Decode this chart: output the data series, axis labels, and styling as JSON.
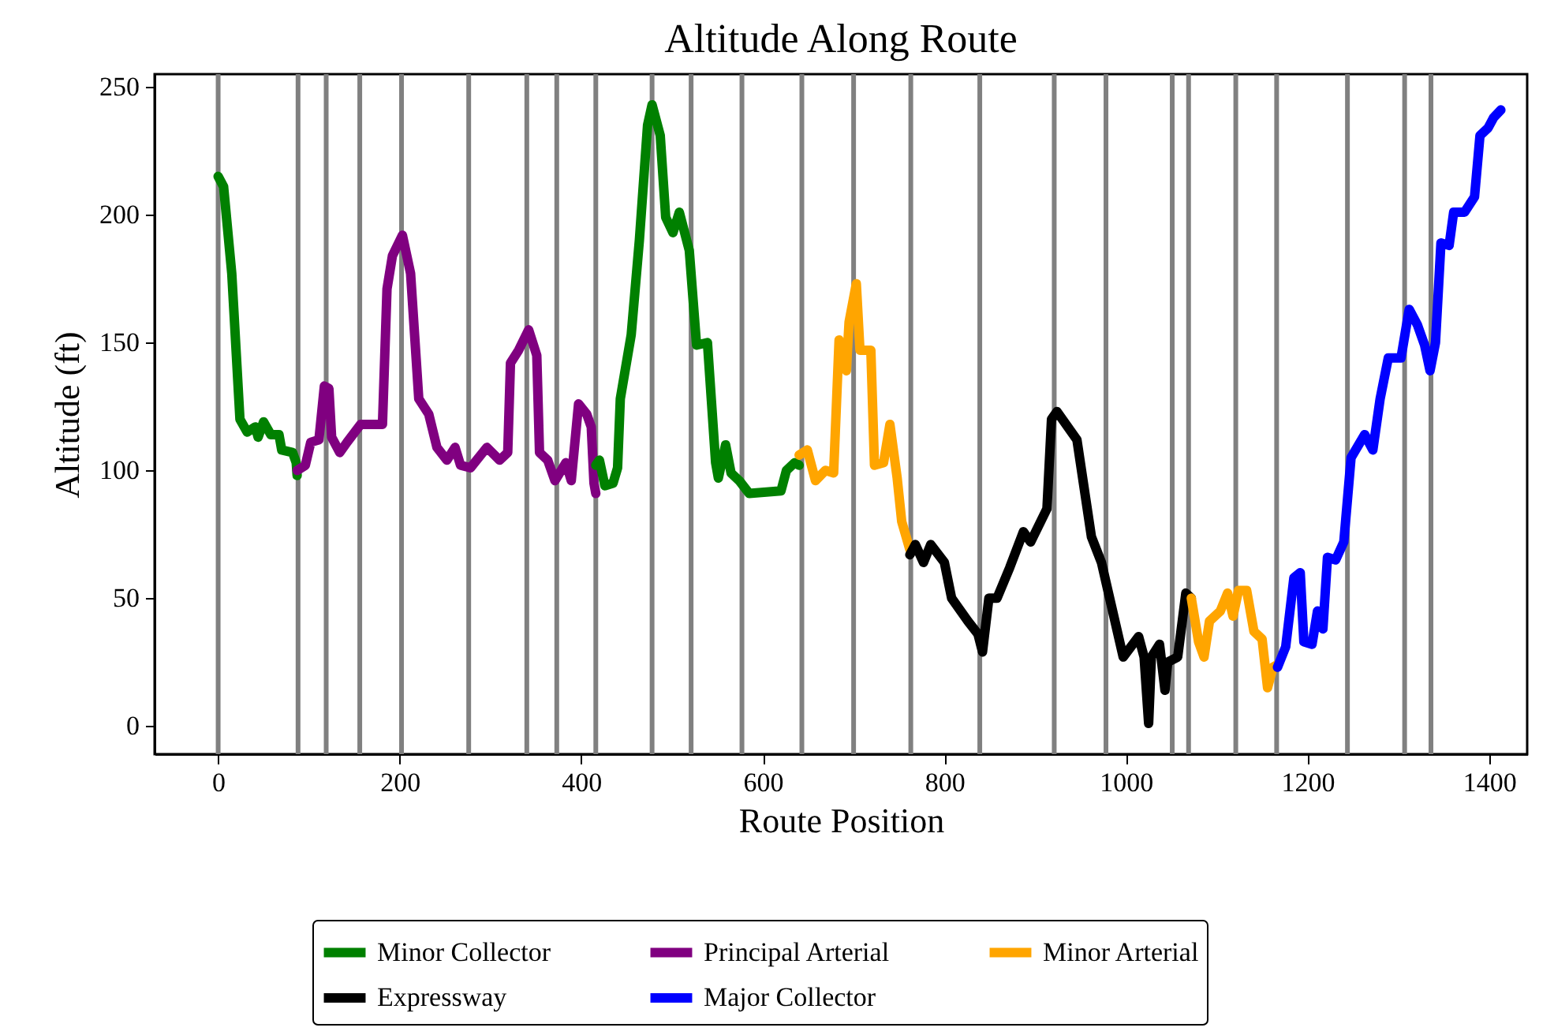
{
  "chart_data": {
    "type": "line",
    "title": "Altitude Along Route",
    "xlabel": "Route Position",
    "ylabel": "Altitude (ft)",
    "xlim": [
      -70,
      1442
    ],
    "ylim": [
      -11,
      255
    ],
    "xticks": [
      0,
      200,
      400,
      600,
      800,
      1000,
      1200,
      1400
    ],
    "yticks": [
      0,
      50,
      100,
      150,
      200,
      250
    ],
    "legend": "bottom",
    "line_style": "solid",
    "series": [
      {
        "name": "Minor Collector",
        "color": "#008000",
        "x": [
          0,
          6,
          15,
          24,
          32,
          41,
          44,
          50,
          58,
          67,
          70,
          82,
          86,
          87
        ],
        "values": [
          215,
          211,
          177,
          120,
          115,
          117,
          113,
          119,
          114,
          114,
          108,
          107,
          103,
          98
        ]
      },
      {
        "name": "Principal Arterial",
        "color": "#800080",
        "x": [
          87,
          96,
          102,
          111,
          117,
          122,
          125,
          134,
          142,
          157,
          181,
          186,
          192,
          203,
          212,
          221,
          232,
          241,
          252,
          261,
          267,
          278,
          296,
          310,
          319,
          322,
          331,
          342,
          351,
          354,
          363,
          371,
          383,
          389,
          397,
          406,
          411,
          414,
          416
        ],
        "values": [
          100,
          102,
          111,
          112,
          133,
          132,
          113,
          107,
          111,
          118,
          118,
          171,
          184,
          192,
          177,
          128,
          122,
          109,
          104,
          109,
          102,
          101,
          109,
          104,
          107,
          142,
          147,
          155,
          145,
          107,
          104,
          96,
          103,
          96,
          126,
          122,
          117,
          95,
          91
        ]
      },
      {
        "color": "#008000",
        "x": [
          416,
          420,
          426,
          435,
          440,
          443,
          455,
          464,
          473,
          478,
          487,
          493,
          501,
          508,
          519,
          527,
          539,
          548,
          551,
          559,
          565,
          574,
          585,
          620,
          626,
          635,
          640
        ],
        "values": [
          102,
          104,
          94,
          95,
          101,
          128,
          153,
          190,
          235,
          243,
          231,
          199,
          193,
          201,
          186,
          149,
          150,
          103,
          97,
          110,
          99,
          96,
          91,
          92,
          100,
          103,
          102
        ]
      },
      {
        "name": "Minor Arterial",
        "color": "#ffa500",
        "x": [
          640,
          649,
          658,
          669,
          678,
          684,
          692,
          695,
          703,
          707,
          719,
          723,
          733,
          740,
          748,
          753,
          762
        ],
        "values": [
          106,
          108,
          96,
          100,
          99,
          151,
          139,
          158,
          173,
          147,
          147,
          102,
          103,
          118,
          97,
          80,
          69
        ]
      },
      {
        "name": "Expressway",
        "color": "#000000",
        "x": [
          762,
          768,
          777,
          785,
          800,
          808,
          826,
          837,
          842,
          849,
          858,
          872,
          887,
          895,
          913,
          918,
          924,
          946,
          962,
          973,
          997,
          1014,
          1020,
          1025,
          1028,
          1037,
          1043,
          1046,
          1057,
          1066,
          1072
        ],
        "values": [
          67,
          71,
          64,
          71,
          64,
          50,
          41,
          36,
          29,
          50,
          50,
          62,
          76,
          72,
          85,
          120,
          123,
          112,
          74,
          64,
          27,
          35,
          27,
          1,
          27,
          32,
          14,
          25,
          27,
          52,
          50
        ]
      },
      {
        "color": "#ffa500",
        "x": [
          1072,
          1080,
          1086,
          1092,
          1104,
          1112,
          1118,
          1124,
          1133,
          1141,
          1150,
          1156,
          1162,
          1167
        ],
        "values": [
          50,
          33,
          27,
          41,
          45,
          52,
          43,
          53,
          53,
          37,
          34,
          15,
          23,
          24
        ]
      },
      {
        "name": "Major Collector",
        "color": "#0000ff",
        "x": [
          1167,
          1176,
          1185,
          1192,
          1196,
          1205,
          1211,
          1217,
          1222,
          1231,
          1240,
          1248,
          1263,
          1272,
          1280,
          1289,
          1303,
          1312,
          1321,
          1329,
          1335,
          1341,
          1347,
          1356,
          1361,
          1373,
          1384,
          1390,
          1399,
          1405,
          1413
        ],
        "values": [
          23,
          31,
          58,
          60,
          33,
          32,
          45,
          38,
          66,
          65,
          72,
          105,
          114,
          108,
          128,
          144,
          144,
          163,
          157,
          149,
          139,
          150,
          189,
          188,
          201,
          201,
          207,
          231,
          234,
          238,
          241
        ]
      }
    ],
    "ref_lines": [
      {
        "axis": "x",
        "value": 0,
        "color": "#808080"
      },
      {
        "axis": "x",
        "value": 88,
        "color": "#808080"
      },
      {
        "axis": "x",
        "value": 119,
        "color": "#808080"
      },
      {
        "axis": "x",
        "value": 156,
        "color": "#808080"
      },
      {
        "axis": "x",
        "value": 202,
        "color": "#808080"
      },
      {
        "axis": "x",
        "value": 276,
        "color": "#808080"
      },
      {
        "axis": "x",
        "value": 340,
        "color": "#808080"
      },
      {
        "axis": "x",
        "value": 373,
        "color": "#808080"
      },
      {
        "axis": "x",
        "value": 416,
        "color": "#808080"
      },
      {
        "axis": "x",
        "value": 478,
        "color": "#808080"
      },
      {
        "axis": "x",
        "value": 521,
        "color": "#808080"
      },
      {
        "axis": "x",
        "value": 577,
        "color": "#808080"
      },
      {
        "axis": "x",
        "value": 643,
        "color": "#808080"
      },
      {
        "axis": "x",
        "value": 700,
        "color": "#808080"
      },
      {
        "axis": "x",
        "value": 763,
        "color": "#808080"
      },
      {
        "axis": "x",
        "value": 839,
        "color": "#808080"
      },
      {
        "axis": "x",
        "value": 921,
        "color": "#808080"
      },
      {
        "axis": "x",
        "value": 978,
        "color": "#808080"
      },
      {
        "axis": "x",
        "value": 1051,
        "color": "#808080"
      },
      {
        "axis": "x",
        "value": 1069,
        "color": "#808080"
      },
      {
        "axis": "x",
        "value": 1121,
        "color": "#808080"
      },
      {
        "axis": "x",
        "value": 1166,
        "color": "#808080"
      },
      {
        "axis": "x",
        "value": 1244,
        "color": "#808080"
      },
      {
        "axis": "x",
        "value": 1307,
        "color": "#808080"
      },
      {
        "axis": "x",
        "value": 1336,
        "color": "#808080"
      }
    ]
  }
}
